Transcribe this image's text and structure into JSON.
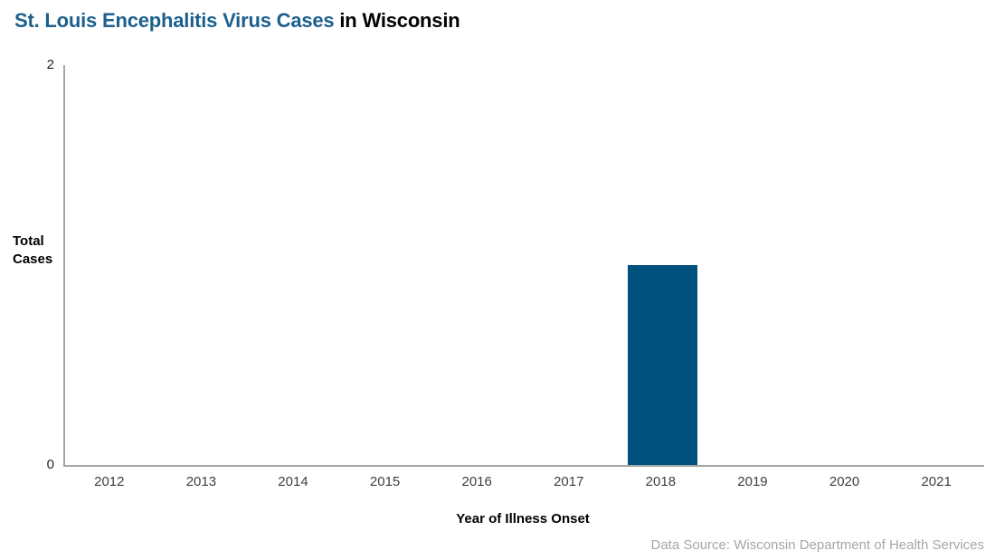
{
  "title": {
    "highlight": "St. Louis Encephalitis Virus Cases",
    "rest": " in Wisconsin"
  },
  "colors": {
    "title_highlight": "#1C5F8C",
    "bar": "#00517D",
    "axis_line": "#A6A6A6",
    "tick_text": "#404040",
    "source_text": "#A6A6A6"
  },
  "y_axis": {
    "label_line1": "Total",
    "label_line2": "Cases",
    "tick_top": "2",
    "tick_bottom": "0"
  },
  "x_axis": {
    "label": "Year of Illness Onset"
  },
  "source": "Data Source: Wisconsin Department of Health Services",
  "chart_data": {
    "type": "bar",
    "title": "St. Louis Encephalitis Virus Cases in Wisconsin",
    "categories": [
      "2012",
      "2013",
      "2014",
      "2015",
      "2016",
      "2017",
      "2018",
      "2019",
      "2020",
      "2021"
    ],
    "values": [
      0,
      0,
      0,
      0,
      0,
      0,
      1,
      0,
      0,
      0
    ],
    "xlabel": "Year of Illness Onset",
    "ylabel": "Total Cases",
    "ylim": [
      0,
      2
    ],
    "yticks": [
      0,
      2
    ],
    "grid": false,
    "legend": false,
    "bar_color": "#00517D"
  }
}
